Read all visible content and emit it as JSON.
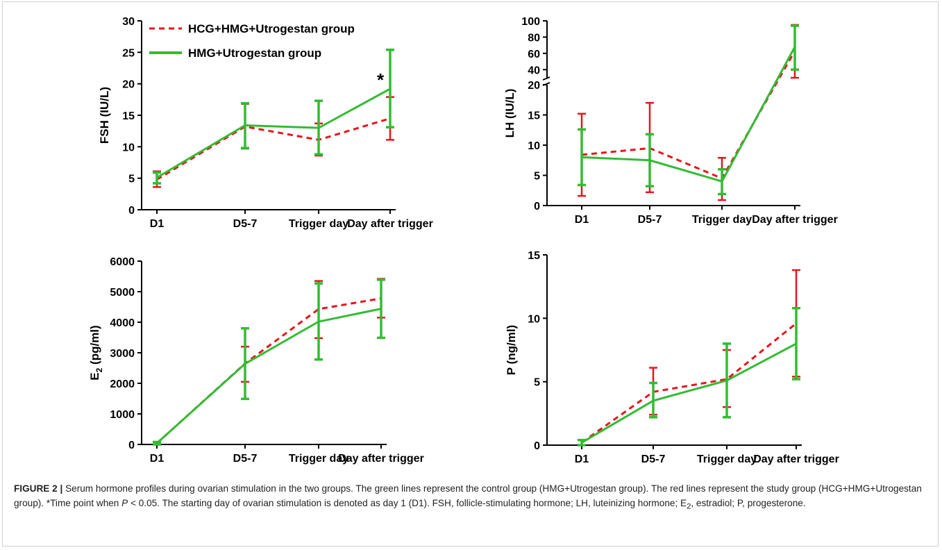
{
  "colors": {
    "red": "#e8141b",
    "green": "#33bb33",
    "axis": "#000000"
  },
  "legend": {
    "red_label": "HCG+HMG+Utrogestan group",
    "green_label": "HMG+Utrogestan group"
  },
  "caption": {
    "label": "FIGURE 2 |",
    "part1": "Serum hormone profiles during ovarian stimulation in the two groups. The green lines represent the control group (HMG+Utrogestan group). The red lines represent the study group (HCG+HMG+Utrogestan group). *Time point when ",
    "p_symbol": "P",
    "part2": " < 0.05. The starting day of ovarian stimulation is denoted as day 1 (D1). FSH, follicle-stimulating hormone; LH, luteinizing hormone; E",
    "e_sub": "2",
    "part3": ", estradiol; P, progesterone."
  },
  "chart_data": [
    {
      "id": "fsh",
      "type": "line",
      "ylabel": "FSH (IU/L)",
      "categories": [
        "D1",
        "D5-7",
        "Trigger day",
        "Day after trigger"
      ],
      "ylim": [
        0,
        30
      ],
      "yticks": [
        0,
        5,
        10,
        15,
        20,
        25,
        30
      ],
      "annotation": "*",
      "series": [
        {
          "name": "HCG+HMG+Utrogestan group",
          "color": "red",
          "dash": true,
          "values": [
            4.8,
            13.2,
            11.1,
            14.5
          ],
          "err_low": [
            3.6,
            9.7,
            8.6,
            11.1
          ],
          "err_high": [
            6.1,
            16.8,
            13.7,
            17.9
          ]
        },
        {
          "name": "HMG+Utrogestan group",
          "color": "green",
          "dash": false,
          "values": [
            5.1,
            13.4,
            13.0,
            19.2
          ],
          "err_low": [
            4.2,
            9.8,
            8.8,
            13.1
          ],
          "err_high": [
            5.9,
            16.9,
            17.3,
            25.4
          ]
        }
      ]
    },
    {
      "id": "lh",
      "type": "line",
      "ylabel": "LH (IU/L)",
      "categories": [
        "D1",
        "D5-7",
        "Trigger day",
        "Day after trigger"
      ],
      "ylim": [
        0,
        100
      ],
      "axis_break": [
        20,
        30
      ],
      "yticks": [
        0,
        5,
        10,
        15,
        20,
        40,
        60,
        80,
        100
      ],
      "series": [
        {
          "name": "HCG+HMG+Utrogestan group",
          "color": "red",
          "dash": true,
          "values": [
            8.4,
            9.5,
            4.5,
            63
          ],
          "err_low": [
            1.6,
            2.2,
            0.9,
            30
          ],
          "err_high": [
            15.2,
            17.0,
            7.9,
            95
          ]
        },
        {
          "name": "HMG+Utrogestan group",
          "color": "green",
          "dash": false,
          "values": [
            8.0,
            7.5,
            4.0,
            68
          ],
          "err_low": [
            3.4,
            3.2,
            1.9,
            40
          ],
          "err_high": [
            12.6,
            11.8,
            6.0,
            94
          ]
        }
      ]
    },
    {
      "id": "e2",
      "type": "line",
      "ylabel_main": "E",
      "ylabel_sub": "2",
      "ylabel_rest": " (pg/ml)",
      "categories": [
        "D1",
        "D5-7",
        "Trigger day",
        "Day after trigger"
      ],
      "ylim": [
        0,
        6000
      ],
      "yticks": [
        0,
        1000,
        2000,
        3000,
        4000,
        5000,
        6000
      ],
      "series": [
        {
          "name": "HCG+HMG+Utrogestan group",
          "color": "red",
          "dash": true,
          "values": [
            40,
            2650,
            4430,
            4780
          ],
          "err_low": [
            0,
            2050,
            3480,
            4150
          ],
          "err_high": [
            80,
            3200,
            5350,
            5420
          ]
        },
        {
          "name": "HMG+Utrogestan group",
          "color": "green",
          "dash": false,
          "values": [
            40,
            2640,
            4020,
            4440
          ],
          "err_low": [
            0,
            1490,
            2780,
            3490
          ],
          "err_high": [
            80,
            3800,
            5270,
            5390
          ]
        }
      ]
    },
    {
      "id": "p",
      "type": "line",
      "ylabel": "P (ng/ml)",
      "categories": [
        "D1",
        "D5-7",
        "Trigger day",
        "Day after trigger"
      ],
      "ylim": [
        0,
        15
      ],
      "yticks": [
        0,
        5,
        10,
        15
      ],
      "series": [
        {
          "name": "HCG+HMG+Utrogestan group",
          "color": "red",
          "dash": true,
          "values": [
            0.2,
            4.2,
            5.2,
            9.6
          ],
          "err_low": [
            0.0,
            2.4,
            3.0,
            5.4
          ],
          "err_high": [
            0.4,
            6.1,
            7.5,
            13.8
          ]
        },
        {
          "name": "HMG+Utrogestan group",
          "color": "green",
          "dash": false,
          "values": [
            0.2,
            3.5,
            5.1,
            8.0
          ],
          "err_low": [
            0.0,
            2.2,
            2.2,
            5.2
          ],
          "err_high": [
            0.4,
            4.9,
            8.0,
            10.8
          ]
        }
      ]
    }
  ]
}
